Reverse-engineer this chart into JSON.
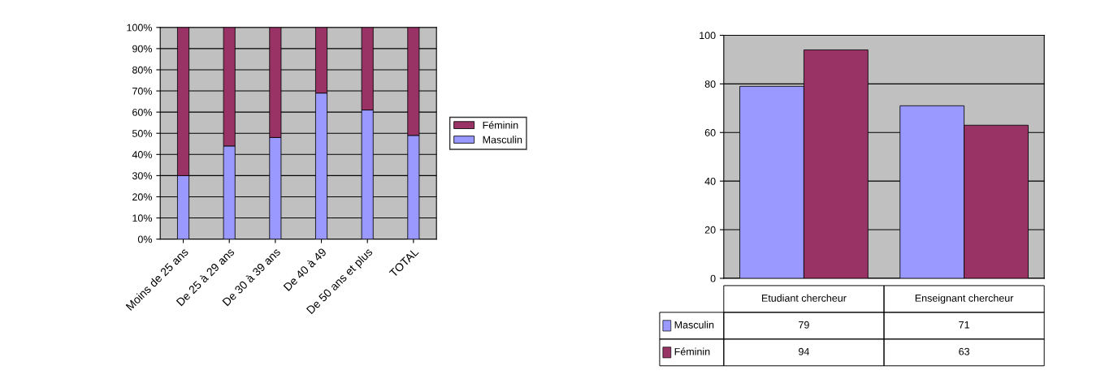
{
  "chart_data": [
    {
      "type": "bar",
      "stacked": true,
      "categories": [
        "Moins de 25 ans",
        "De 25 à 29 ans",
        "De 30 à 39 ans",
        "De 40 à 49",
        "De 50 ans et plus",
        "TOTAL"
      ],
      "series": [
        {
          "name": "Masculin",
          "color": "#9999ff",
          "values": [
            30,
            44,
            48,
            69,
            61,
            49
          ]
        },
        {
          "name": "Féminin",
          "color": "#993366",
          "values": [
            70,
            56,
            52,
            31,
            39,
            51
          ]
        }
      ],
      "ylim": [
        0,
        100
      ],
      "yticks": [
        {
          "value": 0,
          "label": "0%"
        },
        {
          "value": 10,
          "label": "10%"
        },
        {
          "value": 20,
          "label": "20%"
        },
        {
          "value": 30,
          "label": "30%"
        },
        {
          "value": 40,
          "label": "40%"
        },
        {
          "value": 50,
          "label": "50%"
        },
        {
          "value": 60,
          "label": "60%"
        },
        {
          "value": 70,
          "label": "70%"
        },
        {
          "value": 80,
          "label": "80%"
        },
        {
          "value": 90,
          "label": "90%"
        },
        {
          "value": 100,
          "label": "100%"
        }
      ],
      "grid": "y",
      "legend": "right"
    },
    {
      "type": "bar",
      "categories": [
        "Etudiant chercheur",
        "Enseignant chercheur"
      ],
      "series": [
        {
          "name": "Masculin",
          "color": "#9999ff",
          "values": [
            79,
            71
          ]
        },
        {
          "name": "Féminin",
          "color": "#993366",
          "values": [
            94,
            63
          ]
        }
      ],
      "ylim": [
        0,
        100
      ],
      "yticks": [
        0,
        20,
        40,
        60,
        80,
        100
      ],
      "grid": "y",
      "data_labels": true,
      "legend": "bottom left"
    }
  ]
}
